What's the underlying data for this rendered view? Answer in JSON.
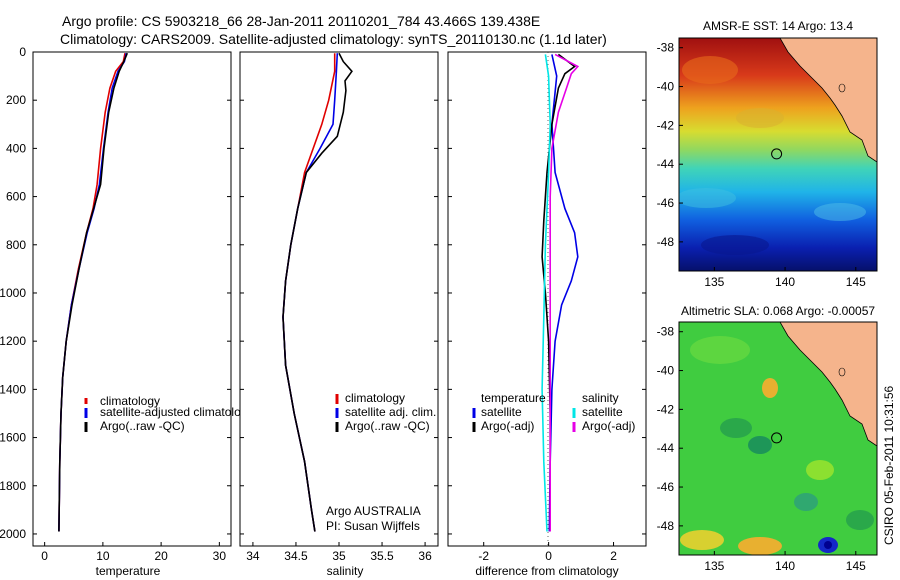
{
  "header": {
    "title_line1": "Argo profile: CS 5903218_66 28-Jan-2011 20110201_784 43.466S 139.438E",
    "title_line2": "Climatology: CARS2009. Satellite-adjusted climatology: synTS_20110130.nc (1.1d later)"
  },
  "footer_vertical": "CSIRO 05-Feb-2011 10:31:56",
  "colors": {
    "climatology": "#e00000",
    "satellite": "#0000e6",
    "argo": "#000000",
    "sat_salinity": "#00e6e6",
    "argo_adj_salinity": "#e600e6",
    "land": "#f5b48c"
  },
  "chart_data": [
    {
      "type": "line",
      "id": "temperature",
      "xlabel": "temperature",
      "ylabel": "",
      "xlim": [
        -2,
        32
      ],
      "ylim": [
        2050,
        0
      ],
      "xticks": [
        "0",
        "10",
        "20",
        "30"
      ],
      "yticks": [
        "0",
        "200",
        "400",
        "600",
        "800",
        "1000",
        "1200",
        "1400",
        "1600",
        "1800",
        "2000"
      ],
      "legend": [
        "climatology",
        "satellite-adjusted climatology",
        "Argo(..raw -QC)"
      ],
      "series": [
        {
          "name": "climatology",
          "color_key": "climatology",
          "points": [
            [
              13.8,
              5
            ],
            [
              13.5,
              40
            ],
            [
              12.2,
              80
            ],
            [
              11.2,
              150
            ],
            [
              10.4,
              250
            ],
            [
              9.6,
              400
            ],
            [
              9.0,
              550
            ],
            [
              8.3,
              650
            ],
            [
              7.2,
              750
            ],
            [
              5.8,
              900
            ],
            [
              4.6,
              1050
            ],
            [
              3.7,
              1200
            ],
            [
              3.1,
              1350
            ],
            [
              2.8,
              1500
            ],
            [
              2.6,
              1700
            ],
            [
              2.45,
              1990
            ]
          ]
        },
        {
          "name": "satellite-adjusted climatology",
          "color_key": "satellite",
          "points": [
            [
              14.0,
              5
            ],
            [
              13.7,
              40
            ],
            [
              12.6,
              80
            ],
            [
              11.6,
              150
            ],
            [
              10.9,
              250
            ],
            [
              10.1,
              400
            ],
            [
              9.4,
              550
            ],
            [
              8.5,
              650
            ],
            [
              7.3,
              750
            ],
            [
              5.9,
              900
            ],
            [
              4.6,
              1050
            ],
            [
              3.7,
              1200
            ],
            [
              3.1,
              1350
            ],
            [
              2.8,
              1500
            ],
            [
              2.6,
              1700
            ],
            [
              2.45,
              1990
            ]
          ]
        },
        {
          "name": "Argo(..raw -QC)",
          "color_key": "argo",
          "points": [
            [
              14.2,
              5
            ],
            [
              13.6,
              40
            ],
            [
              12.8,
              80
            ],
            [
              11.9,
              150
            ],
            [
              11.0,
              250
            ],
            [
              10.2,
              400
            ],
            [
              9.6,
              550
            ],
            [
              8.4,
              650
            ],
            [
              7.2,
              750
            ],
            [
              5.9,
              900
            ],
            [
              4.7,
              1050
            ],
            [
              3.7,
              1200
            ],
            [
              3.1,
              1350
            ],
            [
              2.8,
              1500
            ],
            [
              2.6,
              1700
            ],
            [
              2.45,
              1990
            ]
          ]
        }
      ]
    },
    {
      "type": "line",
      "id": "salinity",
      "xlabel": "salinity",
      "xlim": [
        33.85,
        36.15
      ],
      "ylim": [
        2050,
        0
      ],
      "xticks": [
        "34",
        "34.5",
        "35",
        "35.5",
        "36"
      ],
      "legend": [
        "climatology",
        "satellite adj. clim.",
        "Argo(..raw -QC)"
      ],
      "annotation_lines": [
        "Argo AUSTRALIA",
        "PI: Susan Wijffels"
      ],
      "series": [
        {
          "name": "climatology",
          "color_key": "climatology",
          "points": [
            [
              34.95,
              5
            ],
            [
              34.95,
              80
            ],
            [
              34.88,
              200
            ],
            [
              34.8,
              300
            ],
            [
              34.7,
              400
            ],
            [
              34.6,
              500
            ],
            [
              34.52,
              650
            ],
            [
              34.44,
              800
            ],
            [
              34.38,
              950
            ],
            [
              34.35,
              1100
            ],
            [
              34.38,
              1300
            ],
            [
              34.48,
              1500
            ],
            [
              34.6,
              1700
            ],
            [
              34.68,
              1900
            ],
            [
              34.72,
              1990
            ]
          ]
        },
        {
          "name": "satellite adj. clim.",
          "color_key": "satellite",
          "points": [
            [
              34.98,
              5
            ],
            [
              34.97,
              80
            ],
            [
              34.95,
              200
            ],
            [
              34.93,
              300
            ],
            [
              34.78,
              400
            ],
            [
              34.62,
              500
            ],
            [
              34.52,
              650
            ],
            [
              34.44,
              800
            ],
            [
              34.38,
              950
            ],
            [
              34.35,
              1100
            ],
            [
              34.38,
              1300
            ],
            [
              34.48,
              1500
            ],
            [
              34.6,
              1700
            ],
            [
              34.68,
              1900
            ],
            [
              34.72,
              1990
            ]
          ]
        },
        {
          "name": "Argo(..raw -QC)",
          "color_key": "argo",
          "points": [
            [
              35.0,
              5
            ],
            [
              35.05,
              40
            ],
            [
              35.15,
              80
            ],
            [
              35.07,
              120
            ],
            [
              35.08,
              160
            ],
            [
              35.05,
              250
            ],
            [
              34.98,
              350
            ],
            [
              34.8,
              420
            ],
            [
              34.62,
              500
            ],
            [
              34.52,
              650
            ],
            [
              34.44,
              800
            ],
            [
              34.38,
              950
            ],
            [
              34.35,
              1100
            ],
            [
              34.38,
              1300
            ],
            [
              34.48,
              1500
            ],
            [
              34.6,
              1700
            ],
            [
              34.68,
              1900
            ],
            [
              34.72,
              1990
            ]
          ]
        }
      ]
    },
    {
      "type": "line",
      "id": "difference",
      "xlabel": "difference from climatology",
      "xlim": [
        -3.1,
        3.0
      ],
      "ylim": [
        2050,
        0
      ],
      "xticks": [
        "-2",
        "0",
        "2"
      ],
      "legend_left": [
        "temperature",
        "satellite",
        "Argo(-adj)"
      ],
      "legend_right": [
        "salinity",
        "satellite",
        "Argo(-adj)"
      ],
      "series": [
        {
          "name": "satellite",
          "group": "temperature",
          "color_key": "satellite",
          "points": [
            [
              0.1,
              10
            ],
            [
              0.25,
              100
            ],
            [
              0.1,
              300
            ],
            [
              0.2,
              500
            ],
            [
              0.5,
              650
            ],
            [
              0.8,
              750
            ],
            [
              0.9,
              850
            ],
            [
              0.7,
              950
            ],
            [
              0.4,
              1050
            ],
            [
              0.2,
              1200
            ],
            [
              0.1,
              1400
            ],
            [
              0.05,
              1700
            ],
            [
              0.02,
              1990
            ]
          ]
        },
        {
          "name": "Argo(-adj)",
          "group": "temperature",
          "color_key": "argo",
          "points": [
            [
              0.3,
              10
            ],
            [
              0.8,
              60
            ],
            [
              0.5,
              90
            ],
            [
              0.3,
              150
            ],
            [
              0.1,
              300
            ],
            [
              -0.05,
              500
            ],
            [
              -0.15,
              700
            ],
            [
              -0.2,
              850
            ],
            [
              -0.1,
              1000
            ],
            [
              0.0,
              1200
            ],
            [
              0.05,
              1500
            ],
            [
              0.05,
              1990
            ]
          ]
        },
        {
          "name": "satellite",
          "group": "salinity",
          "color_key": "sat_salinity",
          "points": [
            [
              -0.1,
              10
            ],
            [
              0.0,
              100
            ],
            [
              0.05,
              300
            ],
            [
              0.0,
              500
            ],
            [
              -0.1,
              800
            ],
            [
              -0.15,
              1100
            ],
            [
              -0.2,
              1400
            ],
            [
              -0.15,
              1700
            ],
            [
              -0.05,
              1990
            ]
          ]
        },
        {
          "name": "Argo(-adj)",
          "group": "salinity",
          "color_key": "argo_adj_salinity",
          "points": [
            [
              0.2,
              10
            ],
            [
              0.9,
              60
            ],
            [
              0.7,
              90
            ],
            [
              0.55,
              150
            ],
            [
              0.3,
              250
            ],
            [
              0.1,
              400
            ],
            [
              0.05,
              600
            ],
            [
              0.05,
              900
            ],
            [
              0.05,
              1200
            ],
            [
              0.05,
              1500
            ],
            [
              0.05,
              1990
            ]
          ]
        }
      ]
    },
    {
      "type": "heatmap",
      "id": "sst_map",
      "title": "AMSR-E SST: 14 Argo: 13.4",
      "xlim": [
        132.5,
        146.5
      ],
      "ylim": [
        -49.5,
        -37.5
      ],
      "xticks": [
        "135",
        "140",
        "145"
      ],
      "yticks": [
        "-38",
        "-40",
        "-42",
        "-44",
        "-46",
        "-48"
      ],
      "marker": {
        "lon": 139.4,
        "lat": -43.47
      }
    },
    {
      "type": "heatmap",
      "id": "sla_map",
      "title": "Altimetric SLA: 0.068 Argo: -0.00057",
      "xlim": [
        132.5,
        146.5
      ],
      "ylim": [
        -49.5,
        -37.5
      ],
      "xticks": [
        "135",
        "140",
        "145"
      ],
      "yticks": [
        "-38",
        "-40",
        "-42",
        "-44",
        "-46",
        "-48"
      ],
      "marker": {
        "lon": 139.4,
        "lat": -43.47
      }
    }
  ]
}
